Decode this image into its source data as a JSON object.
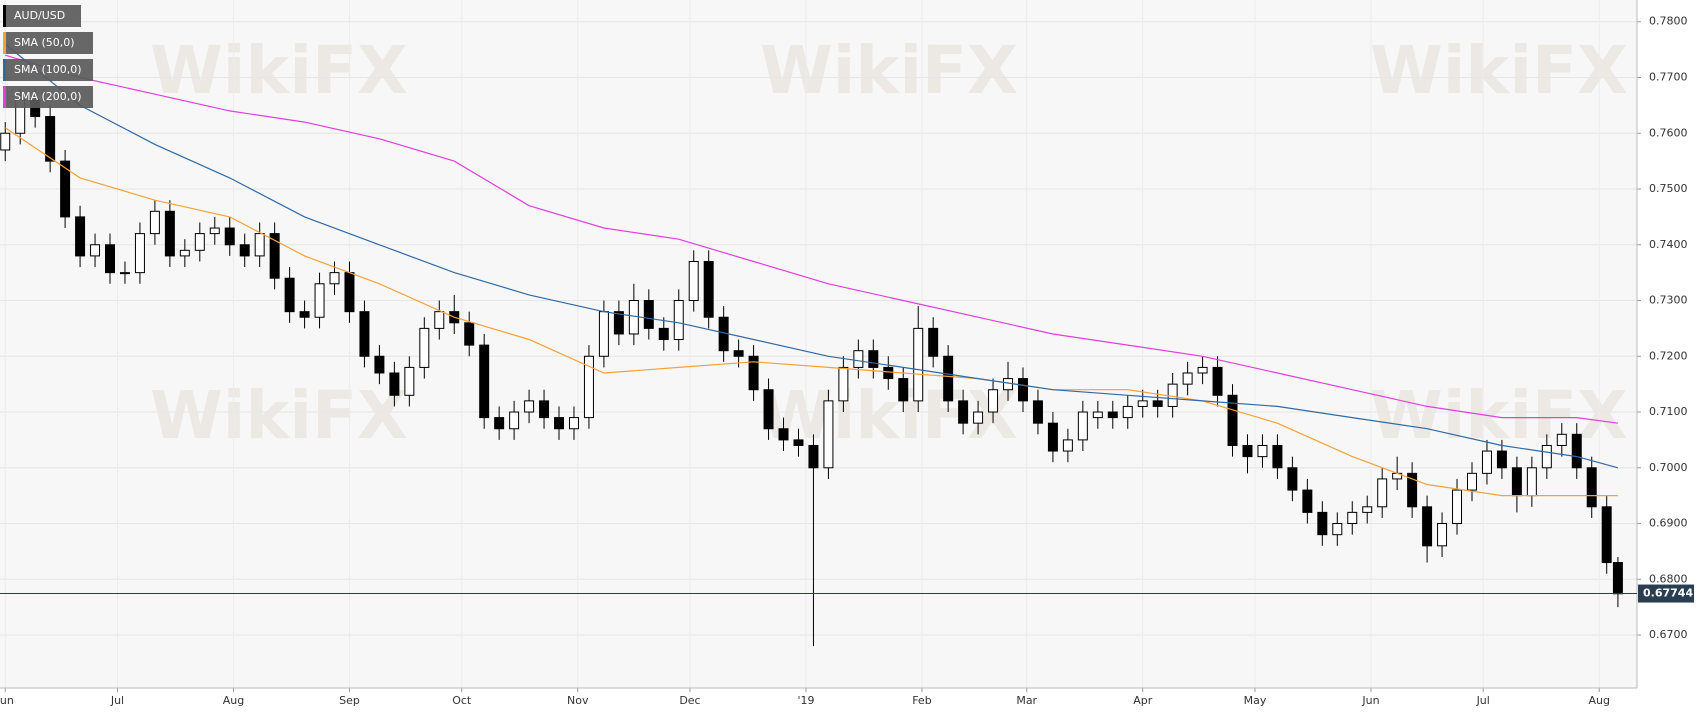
{
  "chart_data": {
    "type": "candlestick",
    "watermark": "WikiFX",
    "xlim": [
      -1.4,
      436.1
    ],
    "ylim": [
      0.6605,
      0.7839
    ],
    "xticks": [
      {
        "value": 0,
        "label": "Jun"
      },
      {
        "value": 30,
        "label": "Jul"
      },
      {
        "value": 61,
        "label": "Aug"
      },
      {
        "value": 92,
        "label": "Sep"
      },
      {
        "value": 122,
        "label": "Oct"
      },
      {
        "value": 153,
        "label": "Nov"
      },
      {
        "value": 183,
        "label": "Dec"
      },
      {
        "value": 214,
        "label": "'19"
      },
      {
        "value": 245,
        "label": "Feb"
      },
      {
        "value": 273,
        "label": "Mar"
      },
      {
        "value": 304,
        "label": "Apr"
      },
      {
        "value": 334,
        "label": "May"
      },
      {
        "value": 365,
        "label": "Jun"
      },
      {
        "value": 395,
        "label": "Jul"
      },
      {
        "value": 426,
        "label": "Aug"
      }
    ],
    "yticks": [
      {
        "value": 0.67,
        "label": "0.6700"
      },
      {
        "value": 0.68,
        "label": "0.6800"
      },
      {
        "value": 0.69,
        "label": "0.6900"
      },
      {
        "value": 0.7,
        "label": "0.7000"
      },
      {
        "value": 0.71,
        "label": "0.7100"
      },
      {
        "value": 0.72,
        "label": "0.7200"
      },
      {
        "value": 0.73,
        "label": "0.7300"
      },
      {
        "value": 0.74,
        "label": "0.7400"
      },
      {
        "value": 0.75,
        "label": "0.7500"
      },
      {
        "value": 0.76,
        "label": "0.7600"
      },
      {
        "value": 0.77,
        "label": "0.7700"
      },
      {
        "value": 0.78,
        "label": "0.7800"
      }
    ],
    "grid": true,
    "last_price": 0.67744,
    "up_color": "#ffffff",
    "down_color": "#000000",
    "series": [
      {
        "name": "AUD/USD",
        "type": "candlestick",
        "color": "#000000",
        "x": [
          0,
          4,
          8,
          12,
          16,
          20,
          24,
          28,
          32,
          36,
          40,
          44,
          48,
          52,
          56,
          60,
          64,
          68,
          72,
          76,
          80,
          84,
          88,
          92,
          96,
          100,
          104,
          108,
          112,
          116,
          120,
          124,
          128,
          132,
          136,
          140,
          144,
          148,
          152,
          156,
          160,
          164,
          168,
          172,
          176,
          180,
          184,
          188,
          192,
          196,
          200,
          204,
          208,
          212,
          216,
          220,
          224,
          228,
          232,
          236,
          240,
          244,
          248,
          252,
          256,
          260,
          264,
          268,
          272,
          276,
          280,
          284,
          288,
          292,
          296,
          300,
          304,
          308,
          312,
          316,
          320,
          324,
          328,
          332,
          336,
          340,
          344,
          348,
          352,
          356,
          360,
          364,
          368,
          372,
          376,
          380,
          384,
          388,
          392,
          396,
          400,
          404,
          408,
          412,
          416,
          420,
          424,
          428,
          431
        ],
        "open": [
          0.757,
          0.76,
          0.766,
          0.763,
          0.755,
          0.745,
          0.738,
          0.74,
          0.735,
          0.735,
          0.742,
          0.746,
          0.738,
          0.739,
          0.742,
          0.743,
          0.74,
          0.738,
          0.742,
          0.734,
          0.728,
          0.727,
          0.733,
          0.735,
          0.728,
          0.72,
          0.717,
          0.713,
          0.718,
          0.725,
          0.728,
          0.726,
          0.722,
          0.709,
          0.707,
          0.71,
          0.712,
          0.709,
          0.707,
          0.709,
          0.72,
          0.728,
          0.724,
          0.73,
          0.725,
          0.723,
          0.73,
          0.737,
          0.727,
          0.721,
          0.72,
          0.714,
          0.707,
          0.705,
          0.704,
          0.7,
          0.712,
          0.718,
          0.721,
          0.718,
          0.716,
          0.712,
          0.725,
          0.72,
          0.712,
          0.708,
          0.71,
          0.714,
          0.716,
          0.712,
          0.708,
          0.703,
          0.705,
          0.709,
          0.71,
          0.709,
          0.711,
          0.712,
          0.711,
          0.715,
          0.717,
          0.718,
          0.713,
          0.704,
          0.702,
          0.704,
          0.7,
          0.696,
          0.692,
          0.688,
          0.69,
          0.692,
          0.693,
          0.698,
          0.699,
          0.693,
          0.686,
          0.69,
          0.696,
          0.699,
          0.703,
          0.7,
          0.695,
          0.7,
          0.704,
          0.706,
          0.7,
          0.693,
          0.683
        ],
        "high": [
          0.762,
          0.768,
          0.768,
          0.765,
          0.757,
          0.747,
          0.742,
          0.742,
          0.737,
          0.744,
          0.748,
          0.748,
          0.741,
          0.744,
          0.745,
          0.745,
          0.742,
          0.744,
          0.744,
          0.736,
          0.73,
          0.735,
          0.737,
          0.737,
          0.73,
          0.722,
          0.719,
          0.72,
          0.727,
          0.73,
          0.731,
          0.728,
          0.724,
          0.711,
          0.712,
          0.714,
          0.714,
          0.711,
          0.711,
          0.722,
          0.73,
          0.73,
          0.733,
          0.732,
          0.727,
          0.732,
          0.739,
          0.739,
          0.729,
          0.723,
          0.722,
          0.716,
          0.709,
          0.707,
          0.706,
          0.714,
          0.72,
          0.723,
          0.723,
          0.72,
          0.718,
          0.729,
          0.727,
          0.722,
          0.714,
          0.712,
          0.716,
          0.719,
          0.718,
          0.714,
          0.71,
          0.707,
          0.712,
          0.712,
          0.712,
          0.713,
          0.714,
          0.714,
          0.717,
          0.719,
          0.72,
          0.72,
          0.715,
          0.706,
          0.706,
          0.706,
          0.702,
          0.698,
          0.694,
          0.692,
          0.694,
          0.695,
          0.7,
          0.702,
          0.701,
          0.695,
          0.692,
          0.698,
          0.701,
          0.705,
          0.705,
          0.702,
          0.702,
          0.706,
          0.708,
          0.708,
          0.702,
          0.695,
          0.684
        ],
        "low": [
          0.755,
          0.758,
          0.761,
          0.753,
          0.743,
          0.736,
          0.736,
          0.733,
          0.733,
          0.733,
          0.74,
          0.736,
          0.736,
          0.737,
          0.74,
          0.738,
          0.736,
          0.736,
          0.732,
          0.726,
          0.725,
          0.725,
          0.731,
          0.726,
          0.718,
          0.715,
          0.711,
          0.711,
          0.716,
          0.723,
          0.724,
          0.72,
          0.707,
          0.705,
          0.705,
          0.708,
          0.707,
          0.705,
          0.705,
          0.707,
          0.718,
          0.722,
          0.722,
          0.723,
          0.721,
          0.721,
          0.728,
          0.725,
          0.719,
          0.718,
          0.712,
          0.705,
          0.703,
          0.702,
          0.668,
          0.698,
          0.71,
          0.716,
          0.716,
          0.714,
          0.71,
          0.71,
          0.718,
          0.71,
          0.706,
          0.706,
          0.708,
          0.712,
          0.71,
          0.706,
          0.701,
          0.701,
          0.703,
          0.707,
          0.707,
          0.707,
          0.709,
          0.709,
          0.709,
          0.713,
          0.715,
          0.711,
          0.702,
          0.699,
          0.7,
          0.698,
          0.694,
          0.69,
          0.686,
          0.686,
          0.688,
          0.69,
          0.691,
          0.696,
          0.691,
          0.683,
          0.684,
          0.688,
          0.694,
          0.697,
          0.698,
          0.692,
          0.693,
          0.698,
          0.702,
          0.698,
          0.691,
          0.681,
          0.675
        ],
        "close": [
          0.76,
          0.766,
          0.763,
          0.755,
          0.745,
          0.738,
          0.74,
          0.735,
          0.735,
          0.742,
          0.746,
          0.738,
          0.739,
          0.742,
          0.743,
          0.74,
          0.738,
          0.742,
          0.734,
          0.728,
          0.727,
          0.733,
          0.735,
          0.728,
          0.72,
          0.717,
          0.713,
          0.718,
          0.725,
          0.728,
          0.726,
          0.722,
          0.709,
          0.707,
          0.71,
          0.712,
          0.709,
          0.707,
          0.709,
          0.72,
          0.728,
          0.724,
          0.73,
          0.725,
          0.723,
          0.73,
          0.737,
          0.727,
          0.721,
          0.72,
          0.714,
          0.707,
          0.705,
          0.704,
          0.7,
          0.712,
          0.718,
          0.721,
          0.718,
          0.716,
          0.712,
          0.725,
          0.72,
          0.712,
          0.708,
          0.71,
          0.714,
          0.716,
          0.712,
          0.708,
          0.703,
          0.705,
          0.71,
          0.71,
          0.709,
          0.711,
          0.712,
          0.711,
          0.715,
          0.717,
          0.718,
          0.713,
          0.704,
          0.702,
          0.704,
          0.7,
          0.696,
          0.692,
          0.688,
          0.69,
          0.692,
          0.693,
          0.698,
          0.699,
          0.693,
          0.686,
          0.69,
          0.696,
          0.699,
          0.703,
          0.7,
          0.695,
          0.7,
          0.704,
          0.706,
          0.7,
          0.693,
          0.683,
          0.6774
        ]
      },
      {
        "name": "SMA (50,0)",
        "type": "line",
        "color": "#f7a13a",
        "x": [
          0,
          20,
          40,
          60,
          80,
          100,
          120,
          140,
          160,
          180,
          200,
          220,
          240,
          260,
          280,
          300,
          320,
          340,
          360,
          380,
          400,
          420,
          431
        ],
        "values": [
          0.761,
          0.752,
          0.748,
          0.745,
          0.738,
          0.733,
          0.727,
          0.723,
          0.717,
          0.718,
          0.719,
          0.718,
          0.717,
          0.716,
          0.714,
          0.714,
          0.712,
          0.708,
          0.702,
          0.697,
          0.695,
          0.695,
          0.695
        ]
      },
      {
        "name": "SMA (100,0)",
        "type": "line",
        "color": "#2f6aa8",
        "x": [
          0,
          20,
          40,
          60,
          80,
          100,
          120,
          140,
          160,
          180,
          200,
          220,
          240,
          260,
          280,
          300,
          320,
          340,
          360,
          380,
          400,
          420,
          431
        ],
        "values": [
          0.776,
          0.765,
          0.758,
          0.752,
          0.745,
          0.74,
          0.735,
          0.731,
          0.728,
          0.726,
          0.723,
          0.72,
          0.718,
          0.716,
          0.714,
          0.713,
          0.712,
          0.711,
          0.709,
          0.707,
          0.704,
          0.702,
          0.7
        ]
      },
      {
        "name": "SMA (200,0)",
        "type": "line",
        "color": "#e23ee0",
        "x": [
          0,
          20,
          40,
          60,
          80,
          100,
          120,
          140,
          160,
          180,
          200,
          220,
          240,
          260,
          280,
          300,
          320,
          340,
          360,
          380,
          400,
          420,
          431
        ],
        "values": [
          0.774,
          0.77,
          0.767,
          0.764,
          0.762,
          0.759,
          0.755,
          0.747,
          0.743,
          0.741,
          0.737,
          0.733,
          0.73,
          0.727,
          0.724,
          0.722,
          0.72,
          0.717,
          0.714,
          0.711,
          0.709,
          0.709,
          0.708
        ]
      }
    ]
  }
}
